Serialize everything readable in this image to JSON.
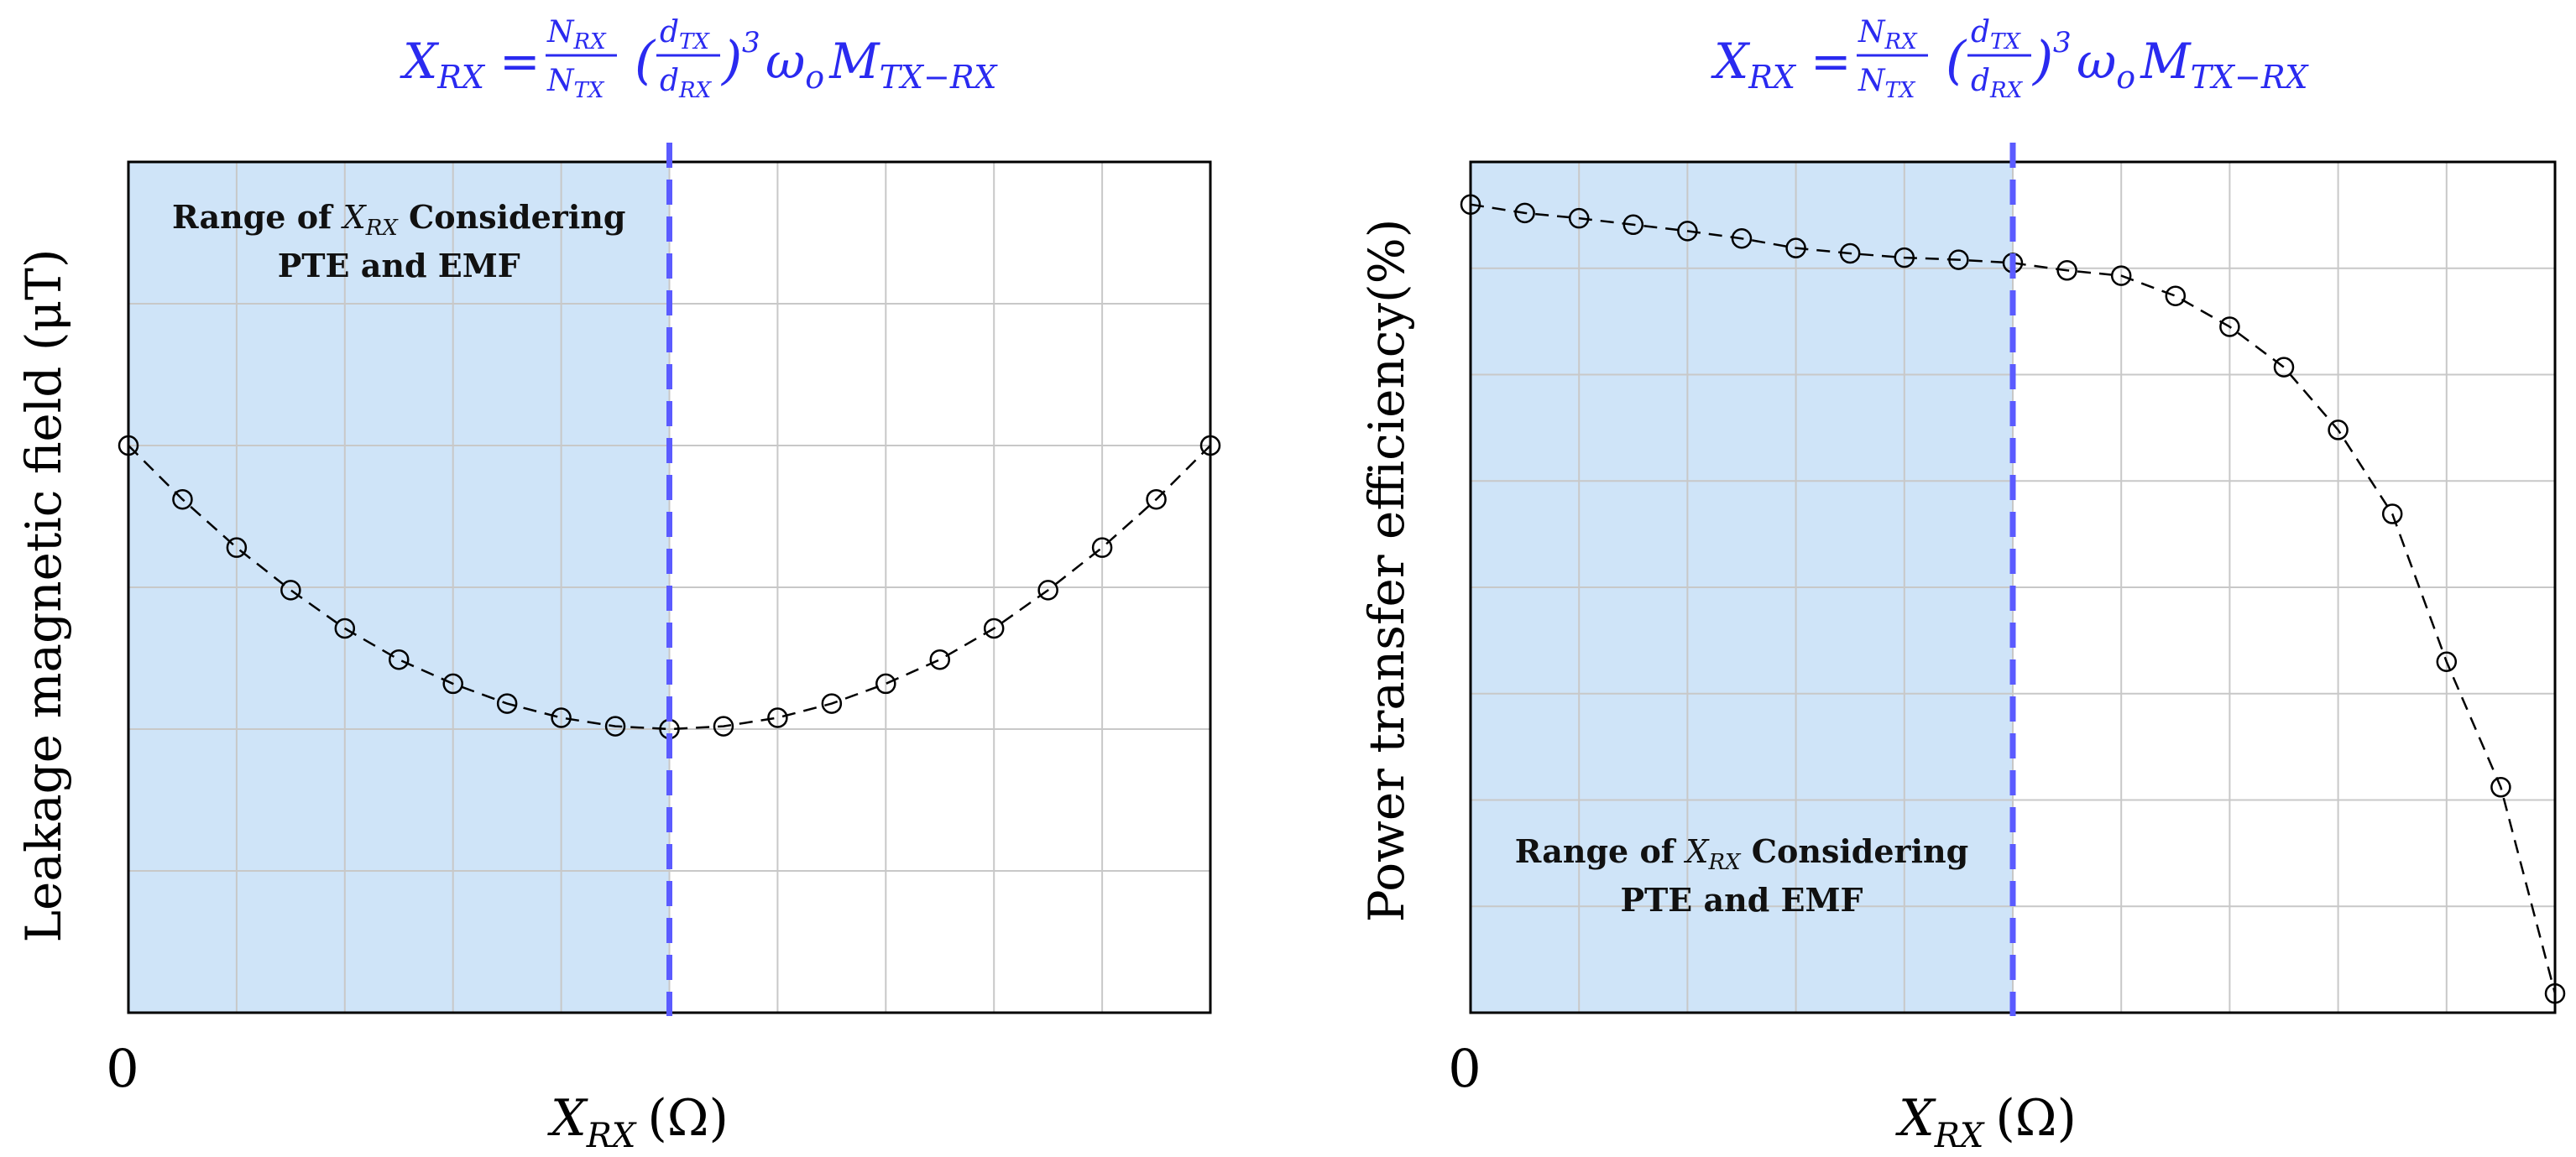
{
  "chart_data": [
    {
      "type": "line",
      "title_formula": {
        "lhs": "X",
        "lhs_sub": "RX",
        "eq": "=",
        "frac1_num": "N",
        "frac1_num_sub": "RX",
        "frac1_den": "N",
        "frac1_den_sub": "TX",
        "frac2_num": "d",
        "frac2_num_sub": "TX",
        "frac2_den": "d",
        "frac2_den_sub": "RX",
        "exponent": "3",
        "omega": "ω",
        "omega_sub": "o",
        "m": "M",
        "m_sub": "TX−RX"
      },
      "ylabel": "Leakage magnetic field (μT)",
      "xlabel": "X",
      "xlabel_sub": "RX",
      "xlabel_unit": "(Ω)",
      "x_tick_label": "0",
      "xlim": [
        0,
        20
      ],
      "ylim": [
        0,
        6
      ],
      "x": [
        0,
        1,
        2,
        3,
        4,
        5,
        6,
        7,
        8,
        9,
        10,
        11,
        12,
        13,
        14,
        15,
        16,
        17,
        18,
        19,
        20
      ],
      "y": [
        4.0,
        3.62,
        3.28,
        2.98,
        2.71,
        2.49,
        2.32,
        2.18,
        2.08,
        2.02,
        2.0,
        2.02,
        2.08,
        2.18,
        2.32,
        2.49,
        2.71,
        2.98,
        3.28,
        3.62,
        4.0
      ],
      "marker": "open-circle",
      "linestyle": "dashed",
      "line_color": "#000000",
      "shaded_region": {
        "x_range": [
          0,
          10
        ],
        "color": "#cfe4f8",
        "label_prefix": "Range of",
        "label_var": "X",
        "label_var_sub": "RX",
        "label_suffix": "Considering",
        "label_line2": "PTE and EMF"
      },
      "vline": {
        "x": 10,
        "color": "#5b5bff",
        "style": "dashed"
      },
      "grid": true
    },
    {
      "type": "line",
      "title_formula": {
        "lhs": "X",
        "lhs_sub": "RX",
        "eq": "=",
        "frac1_num": "N",
        "frac1_num_sub": "RX",
        "frac1_den": "N",
        "frac1_den_sub": "TX",
        "frac2_num": "d",
        "frac2_num_sub": "TX",
        "frac2_den": "d",
        "frac2_den_sub": "RX",
        "exponent": "3",
        "omega": "ω",
        "omega_sub": "o",
        "m": "M",
        "m_sub": "TX−RX"
      },
      "ylabel": "Power transfer efficiency(%)",
      "xlabel": "X",
      "xlabel_sub": "RX",
      "xlabel_unit": "(Ω)",
      "x_tick_label": "0",
      "xlim": [
        0,
        20
      ],
      "ylim": [
        0,
        8
      ],
      "x": [
        0,
        1,
        2,
        3,
        4,
        5,
        6,
        7,
        8,
        9,
        10,
        11,
        12,
        13,
        14,
        15,
        16,
        17,
        18,
        19,
        20
      ],
      "y": [
        7.6,
        7.52,
        7.47,
        7.41,
        7.35,
        7.28,
        7.19,
        7.14,
        7.1,
        7.08,
        7.05,
        6.98,
        6.93,
        6.74,
        6.45,
        6.07,
        5.48,
        4.69,
        3.3,
        2.12,
        0.18
      ],
      "marker": "open-circle",
      "linestyle": "dashed",
      "line_color": "#000000",
      "shaded_region": {
        "x_range": [
          0,
          10
        ],
        "color": "#cfe4f8",
        "label_prefix": "Range of",
        "label_var": "X",
        "label_var_sub": "RX",
        "label_suffix": "Considering",
        "label_line2": "PTE and EMF"
      },
      "vline": {
        "x": 10,
        "color": "#5b5bff",
        "style": "dashed"
      },
      "grid": true
    }
  ]
}
